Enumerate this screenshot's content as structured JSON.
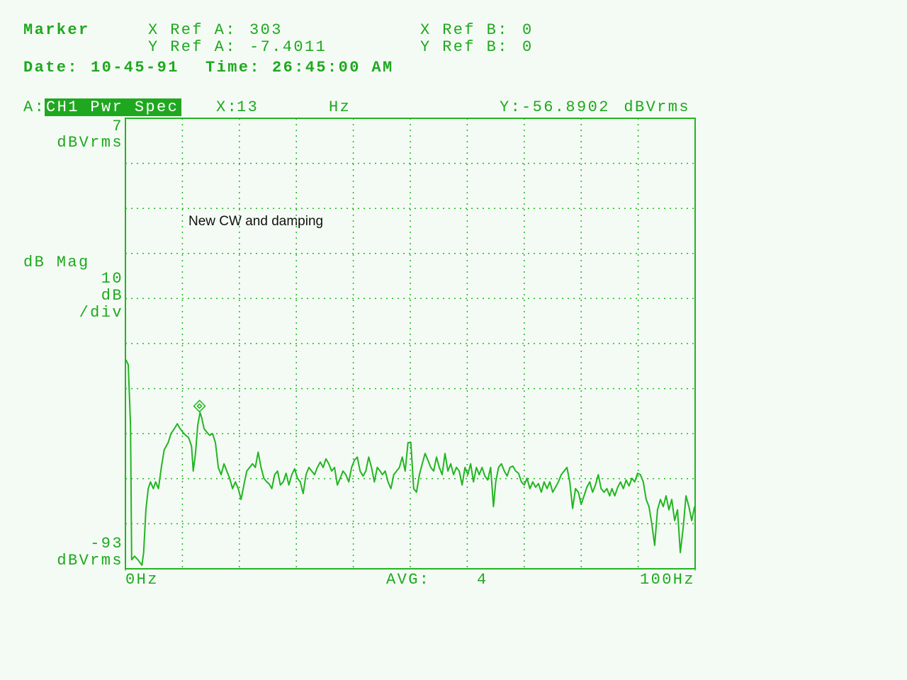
{
  "header": {
    "title": "Marker",
    "x_ref_a_label": "X Ref A:",
    "x_ref_a": 303,
    "x_ref_b_label": "X Ref B:",
    "x_ref_b": 0,
    "y_ref_a_label": "Y Ref A:",
    "y_ref_a": -7.4011,
    "y_ref_b_label": "Y Ref B:",
    "y_ref_b": 0,
    "date_label": "Date:",
    "date": "10-45-91",
    "time_label": "Time:",
    "time": "26:45:00 AM"
  },
  "chart_data": {
    "type": "line",
    "trace_label": "A:",
    "trace_name": "CH1 Pwr Spec",
    "marker": {
      "x_label": "X:",
      "x": 13,
      "x_unit": "Hz",
      "y_label": "Y:",
      "y": -56.8902,
      "y_unit": "dBVrms"
    },
    "y_unit": "dBVrms",
    "y_axis_label": "dB Mag",
    "scale_per_div": 10,
    "scale_unit": "dB",
    "scale_suffix": "/div",
    "avg_label": "AVG:",
    "avg": 4,
    "annotation": "New CW and damping",
    "xlim": [
      0,
      100
    ],
    "xticks": [
      {
        "value": 0,
        "label": "0Hz"
      },
      {
        "value": 100,
        "label": "100Hz"
      }
    ],
    "ylim": [
      -93,
      7
    ],
    "grid": true,
    "series": [
      {
        "color": "#22b522",
        "x": [
          0.1,
          0.5,
          0.9,
          1.1,
          1.6,
          2.2,
          2.9,
          3.2,
          3.6,
          4.0,
          4.4,
          4.9,
          5.3,
          5.8,
          6.3,
          6.8,
          7.5,
          8.0,
          8.6,
          9.1,
          9.6,
          10.1,
          10.6,
          11.1,
          11.6,
          11.9,
          12.3,
          12.7,
          13.1,
          13.4,
          13.8,
          14.3,
          14.8,
          15.3,
          15.8,
          16.3,
          16.8,
          17.3,
          17.8,
          18.3,
          18.8,
          19.3,
          19.8,
          20.3,
          20.8,
          21.3,
          21.8,
          22.3,
          22.8,
          23.3,
          23.8,
          24.3,
          24.8,
          25.2,
          25.7,
          26.2,
          26.7,
          27.2,
          27.7,
          28.2,
          28.7,
          29.2,
          29.7,
          30.2,
          30.7,
          31.2,
          31.7,
          32.2,
          32.7,
          33.2,
          33.7,
          34.2,
          34.7,
          35.2,
          35.7,
          36.2,
          36.7,
          37.2,
          37.7,
          38.2,
          38.7,
          39.2,
          39.7,
          40.2,
          40.7,
          41.2,
          41.7,
          42.2,
          42.7,
          43.2,
          43.7,
          44.2,
          44.7,
          45.1,
          45.6,
          46.1,
          46.6,
          47.1,
          47.6,
          48.1,
          48.6,
          49.1,
          49.6,
          50.1,
          50.6,
          51.1,
          51.6,
          52.1,
          52.6,
          53.1,
          53.6,
          54.1,
          54.6,
          55.1,
          55.6,
          56.1,
          56.6,
          57.1,
          57.6,
          58.1,
          58.6,
          59.1,
          59.6,
          60.1,
          60.6,
          61.1,
          61.6,
          62.1,
          62.6,
          63.1,
          63.6,
          64.1,
          64.6,
          65.0,
          65.5,
          66.0,
          66.5,
          67.0,
          67.5,
          68.0,
          68.5,
          69.0,
          69.5,
          70.0,
          70.5,
          71.0,
          71.5,
          72.0,
          72.5,
          73.0,
          73.5,
          74.0,
          74.5,
          75.0,
          75.5,
          76.0,
          76.5,
          77.0,
          77.5,
          78.0,
          78.5,
          79.0,
          79.5,
          80.0,
          80.5,
          81.0,
          81.5,
          82.0,
          82.5,
          83.0,
          83.5,
          84.0,
          84.5,
          85.0,
          85.4,
          85.9,
          86.4,
          86.9,
          87.4,
          87.9,
          88.4,
          88.9,
          89.4,
          89.9,
          90.4,
          90.9,
          91.4,
          91.9,
          92.4,
          92.9,
          93.4,
          93.9,
          94.4,
          94.9,
          95.4,
          95.9,
          96.4,
          96.9,
          97.4,
          97.9,
          98.4,
          98.9,
          99.4,
          99.9
        ],
        "values": [
          -46.6,
          -47.7,
          -61.1,
          -91.0,
          -90.2,
          -91.0,
          -92.2,
          -89.4,
          -79.9,
          -75.2,
          -73.7,
          -75.2,
          -73.7,
          -75.2,
          -70.5,
          -66.6,
          -65.0,
          -63.0,
          -61.9,
          -60.8,
          -61.9,
          -62.7,
          -63.4,
          -63.9,
          -65.8,
          -71.3,
          -67.4,
          -61.1,
          -58.3,
          -59.5,
          -61.9,
          -62.7,
          -63.4,
          -63.0,
          -65.0,
          -70.5,
          -72.1,
          -69.7,
          -71.3,
          -72.9,
          -75.2,
          -73.7,
          -75.2,
          -77.6,
          -74.4,
          -71.3,
          -70.5,
          -69.7,
          -70.5,
          -67.1,
          -70.5,
          -72.9,
          -73.7,
          -74.1,
          -75.2,
          -72.1,
          -71.3,
          -74.4,
          -73.7,
          -71.8,
          -74.4,
          -72.1,
          -70.8,
          -72.9,
          -73.7,
          -76.3,
          -72.1,
          -70.5,
          -71.3,
          -72.1,
          -70.5,
          -69.3,
          -70.5,
          -68.6,
          -69.7,
          -71.3,
          -70.5,
          -74.4,
          -72.9,
          -71.3,
          -72.1,
          -73.7,
          -70.5,
          -68.9,
          -68.2,
          -71.3,
          -72.4,
          -71.3,
          -68.2,
          -70.5,
          -73.7,
          -70.5,
          -71.3,
          -72.1,
          -71.3,
          -73.7,
          -75.2,
          -72.1,
          -71.3,
          -70.5,
          -68.2,
          -71.3,
          -65.0,
          -65.0,
          -75.2,
          -76.0,
          -72.1,
          -69.7,
          -67.4,
          -68.9,
          -70.5,
          -71.3,
          -68.2,
          -70.5,
          -72.1,
          -67.4,
          -71.3,
          -69.7,
          -72.1,
          -70.5,
          -71.3,
          -74.4,
          -70.5,
          -72.1,
          -69.7,
          -73.7,
          -70.5,
          -72.1,
          -70.5,
          -72.4,
          -73.3,
          -70.5,
          -79.2,
          -73.7,
          -70.5,
          -69.7,
          -71.3,
          -72.4,
          -70.5,
          -70.2,
          -71.3,
          -71.8,
          -73.7,
          -74.4,
          -72.9,
          -75.2,
          -73.7,
          -74.9,
          -74.1,
          -76.0,
          -73.7,
          -75.2,
          -73.7,
          -76.0,
          -74.9,
          -73.7,
          -72.1,
          -71.3,
          -70.5,
          -73.7,
          -79.6,
          -75.2,
          -76.0,
          -78.7,
          -76.8,
          -74.9,
          -73.7,
          -76.0,
          -74.4,
          -72.1,
          -75.2,
          -76.0,
          -75.2,
          -76.8,
          -75.2,
          -76.8,
          -74.9,
          -73.7,
          -75.2,
          -73.3,
          -74.6,
          -72.9,
          -73.7,
          -71.8,
          -72.1,
          -73.7,
          -77.6,
          -79.2,
          -83.1,
          -87.8,
          -79.9,
          -77.6,
          -79.2,
          -76.8,
          -79.9,
          -77.6,
          -82.3,
          -79.9,
          -89.4,
          -83.9,
          -76.8,
          -79.2,
          -82.3,
          -79.2
        ]
      }
    ]
  }
}
